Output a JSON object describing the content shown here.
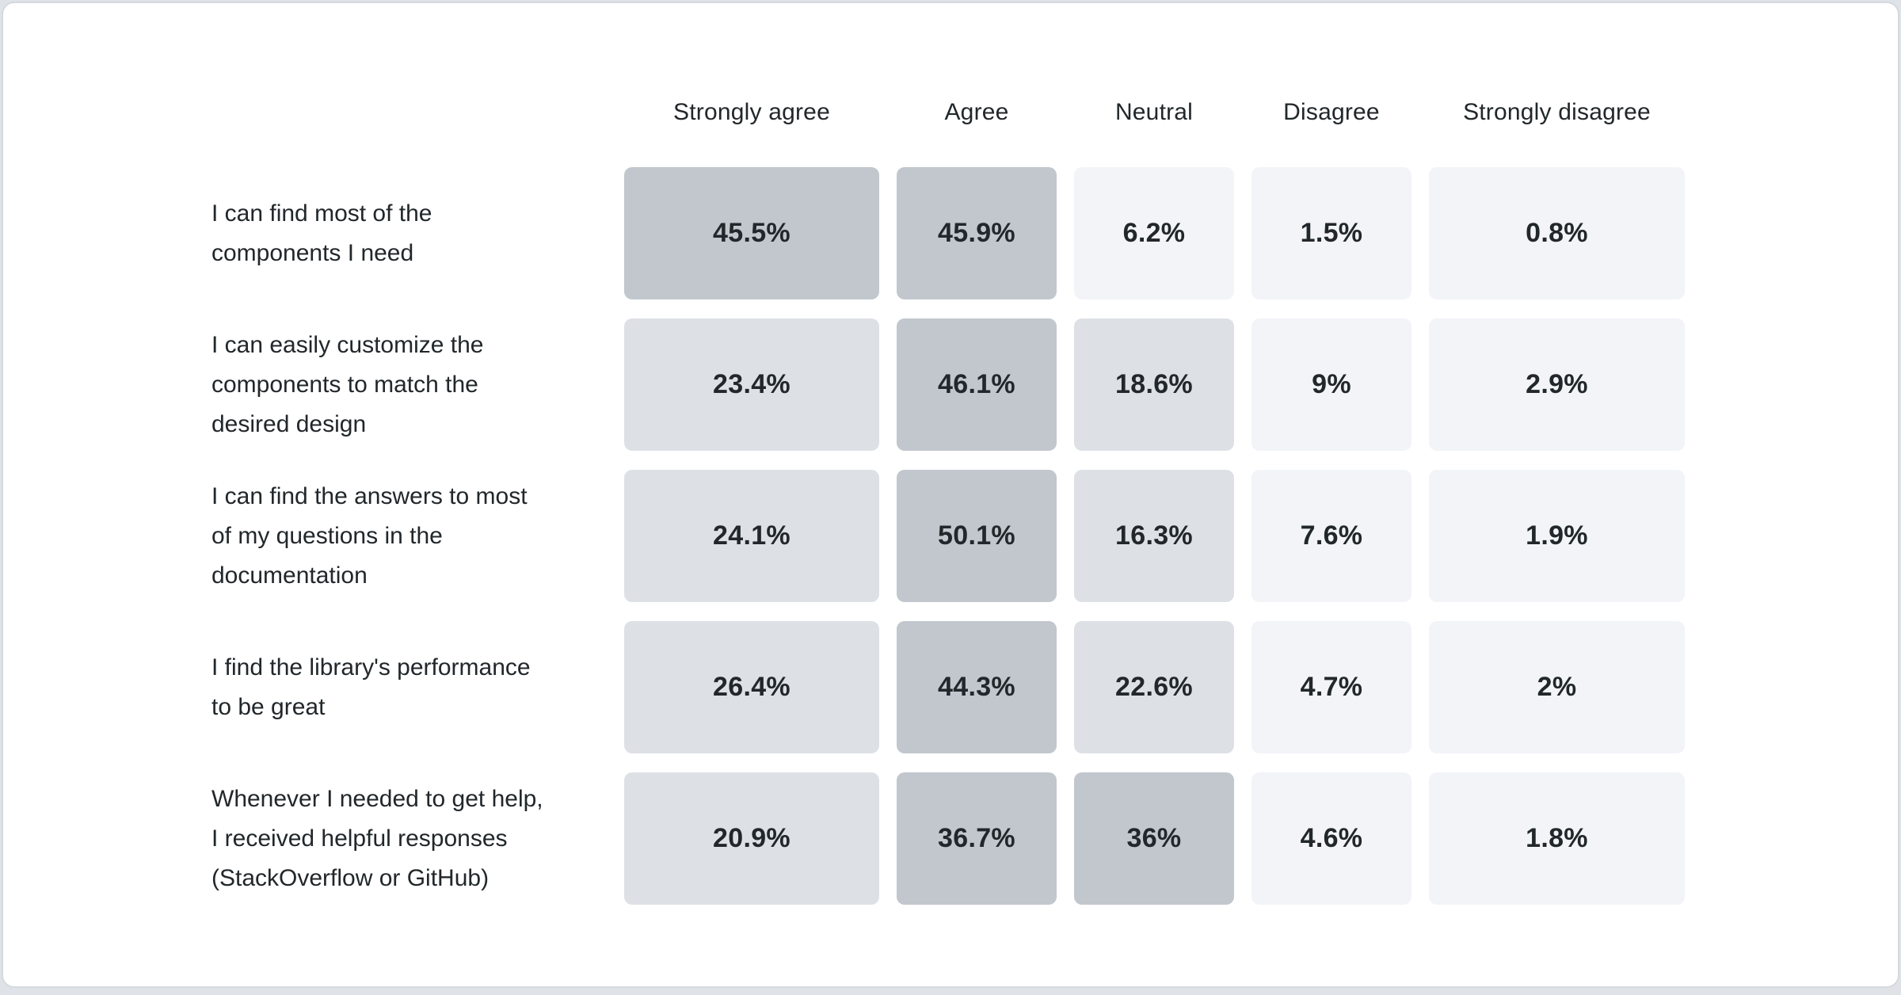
{
  "chart_data": {
    "type": "heatmap",
    "title": "",
    "columns": [
      "Strongly agree",
      "Agree",
      "Neutral",
      "Disagree",
      "Strongly disagree"
    ],
    "rows": [
      {
        "label": "I can find most of the\ncomponents I need",
        "cells": [
          {
            "value": 45.5,
            "display": "45.5%",
            "color": "#c1c7cd"
          },
          {
            "value": 45.9,
            "display": "45.9%",
            "color": "#c1c7cd"
          },
          {
            "value": 6.2,
            "display": "6.2%",
            "color": "#f2f4f8"
          },
          {
            "value": 1.5,
            "display": "1.5%",
            "color": "#f2f4f8"
          },
          {
            "value": 0.8,
            "display": "0.8%",
            "color": "#f2f4f8"
          }
        ]
      },
      {
        "label": "I can easily customize the\ncomponents to match the\ndesired design",
        "cells": [
          {
            "value": 23.4,
            "display": "23.4%",
            "color": "#dde1e6"
          },
          {
            "value": 46.1,
            "display": "46.1%",
            "color": "#c1c7cd"
          },
          {
            "value": 18.6,
            "display": "18.6%",
            "color": "#dde1e6"
          },
          {
            "value": 9,
            "display": "9%",
            "color": "#f2f4f8"
          },
          {
            "value": 2.9,
            "display": "2.9%",
            "color": "#f2f4f8"
          }
        ]
      },
      {
        "label": "I can find the answers to most\nof my questions in the\ndocumentation",
        "cells": [
          {
            "value": 24.1,
            "display": "24.1%",
            "color": "#dde1e6"
          },
          {
            "value": 50.1,
            "display": "50.1%",
            "color": "#c1c7cd"
          },
          {
            "value": 16.3,
            "display": "16.3%",
            "color": "#dde1e6"
          },
          {
            "value": 7.6,
            "display": "7.6%",
            "color": "#f2f4f8"
          },
          {
            "value": 1.9,
            "display": "1.9%",
            "color": "#f2f4f8"
          }
        ]
      },
      {
        "label": "I find the library's performance\nto be great",
        "cells": [
          {
            "value": 26.4,
            "display": "26.4%",
            "color": "#dde1e6"
          },
          {
            "value": 44.3,
            "display": "44.3%",
            "color": "#c1c7cd"
          },
          {
            "value": 22.6,
            "display": "22.6%",
            "color": "#dde1e6"
          },
          {
            "value": 4.7,
            "display": "4.7%",
            "color": "#f2f4f8"
          },
          {
            "value": 2,
            "display": "2%",
            "color": "#f2f4f8"
          }
        ]
      },
      {
        "label": "Whenever I needed to get help,\nI received helpful responses\n(StackOverflow or GitHub)",
        "cells": [
          {
            "value": 20.9,
            "display": "20.9%",
            "color": "#dde1e6"
          },
          {
            "value": 36.7,
            "display": "36.7%",
            "color": "#c1c7cd"
          },
          {
            "value": 36,
            "display": "36%",
            "color": "#c1c7cd"
          },
          {
            "value": 4.6,
            "display": "4.6%",
            "color": "#f2f4f8"
          },
          {
            "value": 1.8,
            "display": "1.8%",
            "color": "#f2f4f8"
          }
        ]
      }
    ],
    "color_scale": {
      "high": "#c1c7cd",
      "mid": "#dde1e6",
      "low": "#f2f4f8",
      "note": "cell shade buckets by value: >30 high, 15-30 mid, <15 low"
    },
    "layout": {
      "legend": "none",
      "grid": "off",
      "value_unit": "%"
    },
    "styles": {
      "card_background": "#ffffff",
      "card_border": "#d5dade",
      "page_background": "#dfe3e7",
      "text_color": "#21272a"
    }
  }
}
